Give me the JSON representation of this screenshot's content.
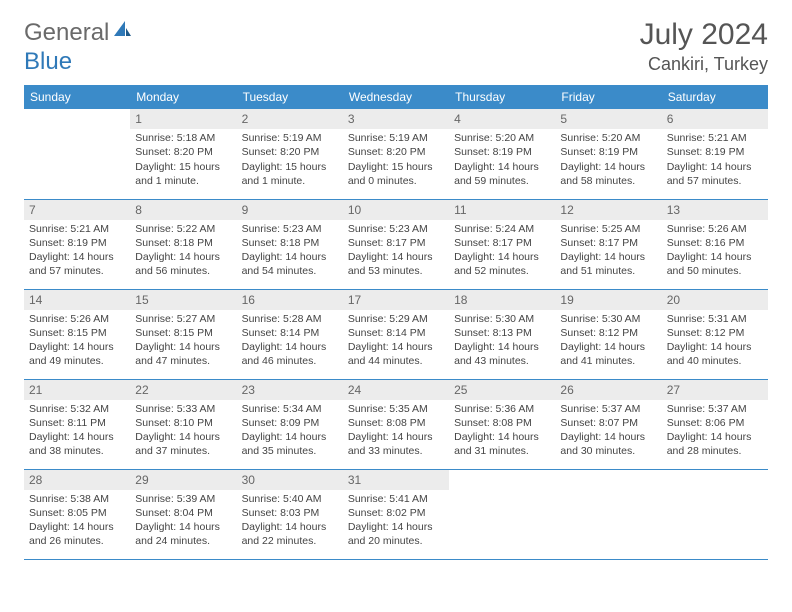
{
  "logo": {
    "text1": "General",
    "text2": "Blue",
    "color_gray": "#6a6a6a",
    "color_blue": "#2f79b8"
  },
  "title": "July 2024",
  "location": "Cankiri, Turkey",
  "colors": {
    "header_bg": "#3b8bc9",
    "header_text": "#ffffff",
    "daynum_bg": "#ececec",
    "cell_text": "#444444",
    "rule": "#3b8bc9"
  },
  "dayNames": [
    "Sunday",
    "Monday",
    "Tuesday",
    "Wednesday",
    "Thursday",
    "Friday",
    "Saturday"
  ],
  "weeks": [
    [
      null,
      {
        "n": "1",
        "sr": "5:18 AM",
        "ss": "8:20 PM",
        "dl": "15 hours and 1 minute."
      },
      {
        "n": "2",
        "sr": "5:19 AM",
        "ss": "8:20 PM",
        "dl": "15 hours and 1 minute."
      },
      {
        "n": "3",
        "sr": "5:19 AM",
        "ss": "8:20 PM",
        "dl": "15 hours and 0 minutes."
      },
      {
        "n": "4",
        "sr": "5:20 AM",
        "ss": "8:19 PM",
        "dl": "14 hours and 59 minutes."
      },
      {
        "n": "5",
        "sr": "5:20 AM",
        "ss": "8:19 PM",
        "dl": "14 hours and 58 minutes."
      },
      {
        "n": "6",
        "sr": "5:21 AM",
        "ss": "8:19 PM",
        "dl": "14 hours and 57 minutes."
      }
    ],
    [
      {
        "n": "7",
        "sr": "5:21 AM",
        "ss": "8:19 PM",
        "dl": "14 hours and 57 minutes."
      },
      {
        "n": "8",
        "sr": "5:22 AM",
        "ss": "8:18 PM",
        "dl": "14 hours and 56 minutes."
      },
      {
        "n": "9",
        "sr": "5:23 AM",
        "ss": "8:18 PM",
        "dl": "14 hours and 54 minutes."
      },
      {
        "n": "10",
        "sr": "5:23 AM",
        "ss": "8:17 PM",
        "dl": "14 hours and 53 minutes."
      },
      {
        "n": "11",
        "sr": "5:24 AM",
        "ss": "8:17 PM",
        "dl": "14 hours and 52 minutes."
      },
      {
        "n": "12",
        "sr": "5:25 AM",
        "ss": "8:17 PM",
        "dl": "14 hours and 51 minutes."
      },
      {
        "n": "13",
        "sr": "5:26 AM",
        "ss": "8:16 PM",
        "dl": "14 hours and 50 minutes."
      }
    ],
    [
      {
        "n": "14",
        "sr": "5:26 AM",
        "ss": "8:15 PM",
        "dl": "14 hours and 49 minutes."
      },
      {
        "n": "15",
        "sr": "5:27 AM",
        "ss": "8:15 PM",
        "dl": "14 hours and 47 minutes."
      },
      {
        "n": "16",
        "sr": "5:28 AM",
        "ss": "8:14 PM",
        "dl": "14 hours and 46 minutes."
      },
      {
        "n": "17",
        "sr": "5:29 AM",
        "ss": "8:14 PM",
        "dl": "14 hours and 44 minutes."
      },
      {
        "n": "18",
        "sr": "5:30 AM",
        "ss": "8:13 PM",
        "dl": "14 hours and 43 minutes."
      },
      {
        "n": "19",
        "sr": "5:30 AM",
        "ss": "8:12 PM",
        "dl": "14 hours and 41 minutes."
      },
      {
        "n": "20",
        "sr": "5:31 AM",
        "ss": "8:12 PM",
        "dl": "14 hours and 40 minutes."
      }
    ],
    [
      {
        "n": "21",
        "sr": "5:32 AM",
        "ss": "8:11 PM",
        "dl": "14 hours and 38 minutes."
      },
      {
        "n": "22",
        "sr": "5:33 AM",
        "ss": "8:10 PM",
        "dl": "14 hours and 37 minutes."
      },
      {
        "n": "23",
        "sr": "5:34 AM",
        "ss": "8:09 PM",
        "dl": "14 hours and 35 minutes."
      },
      {
        "n": "24",
        "sr": "5:35 AM",
        "ss": "8:08 PM",
        "dl": "14 hours and 33 minutes."
      },
      {
        "n": "25",
        "sr": "5:36 AM",
        "ss": "8:08 PM",
        "dl": "14 hours and 31 minutes."
      },
      {
        "n": "26",
        "sr": "5:37 AM",
        "ss": "8:07 PM",
        "dl": "14 hours and 30 minutes."
      },
      {
        "n": "27",
        "sr": "5:37 AM",
        "ss": "8:06 PM",
        "dl": "14 hours and 28 minutes."
      }
    ],
    [
      {
        "n": "28",
        "sr": "5:38 AM",
        "ss": "8:05 PM",
        "dl": "14 hours and 26 minutes."
      },
      {
        "n": "29",
        "sr": "5:39 AM",
        "ss": "8:04 PM",
        "dl": "14 hours and 24 minutes."
      },
      {
        "n": "30",
        "sr": "5:40 AM",
        "ss": "8:03 PM",
        "dl": "14 hours and 22 minutes."
      },
      {
        "n": "31",
        "sr": "5:41 AM",
        "ss": "8:02 PM",
        "dl": "14 hours and 20 minutes."
      },
      null,
      null,
      null
    ]
  ],
  "labels": {
    "sunrise": "Sunrise: ",
    "sunset": "Sunset: ",
    "daylight": "Daylight: "
  }
}
